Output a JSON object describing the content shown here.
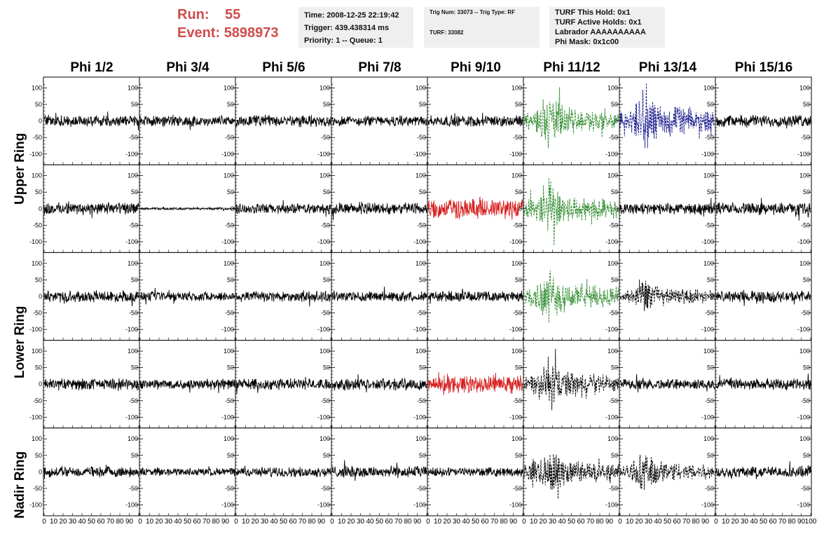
{
  "header": {
    "run_label": "Run:",
    "run_value": "55",
    "event_label": "Event:",
    "event_value": "5898973",
    "time": "Time: 2008-12-25 22:19:42",
    "trigger": "Trigger: 439.438314 ms",
    "priority": "Priority: 1 -- Queue: 1",
    "trig_num": "Trig Num: 33073 -- Trig Type: RF",
    "turf": "TURF: 33082",
    "turf_this_hold": "TURF This Hold: 0x1",
    "turf_active_holds": "TURF Active Holds: 0x1",
    "labrador": "Labrador AAAAAAAAAA",
    "phi_mask": "Phi Mask: 0x1c00"
  },
  "columns": [
    "Phi 1/2",
    "Phi 3/4",
    "Phi 5/6",
    "Phi 7/8",
    "Phi 9/10",
    "Phi 11/12",
    "Phi 13/14",
    "Phi 15/16"
  ],
  "rows": [
    "Upper Ring",
    "Lower Ring",
    "Nadir Ring"
  ],
  "colors": {
    "default": "#000000",
    "green": "#2e8b2e",
    "blue": "#1a1a8c",
    "red": "#d62020"
  },
  "chart_data": {
    "type": "line",
    "x_range": [
      0,
      100
    ],
    "y_range": [
      -120,
      120
    ],
    "y_ticks": [
      -100,
      -50,
      0,
      50,
      100
    ],
    "y_tick_labels": [
      "-100",
      "-50",
      "0",
      "50",
      "100"
    ],
    "x_ticks": [
      0,
      10,
      20,
      30,
      40,
      50,
      60,
      70,
      80,
      90,
      100
    ],
    "x_tick_labels": [
      "0",
      "10",
      "20",
      "30",
      "40",
      "50",
      "60",
      "70",
      "80",
      "90",
      "100"
    ],
    "panel_rows": 5,
    "panel_cols": 8,
    "panels": [
      [
        {
          "amp": 14,
          "color": "default",
          "style": "solid"
        },
        {
          "amp": 13,
          "color": "default",
          "style": "solid"
        },
        {
          "amp": 15,
          "color": "default",
          "style": "solid"
        },
        {
          "amp": 13,
          "color": "default",
          "style": "solid"
        },
        {
          "amp": 14,
          "color": "default",
          "style": "solid"
        },
        {
          "amp": 45,
          "color": "green",
          "style": "dashed",
          "pulse": true
        },
        {
          "amp": 50,
          "color": "blue",
          "style": "dashed",
          "pulse": true
        },
        {
          "amp": 15,
          "color": "default",
          "style": "solid"
        }
      ],
      [
        {
          "amp": 15,
          "color": "default",
          "style": "solid"
        },
        {
          "amp": 3,
          "color": "default",
          "style": "solid"
        },
        {
          "amp": 13,
          "color": "default",
          "style": "solid"
        },
        {
          "amp": 15,
          "color": "default",
          "style": "solid"
        },
        {
          "amp": 25,
          "color": "red",
          "style": "solid"
        },
        {
          "amp": 45,
          "color": "green",
          "style": "dashed",
          "pulse": true
        },
        {
          "amp": 14,
          "color": "default",
          "style": "solid"
        },
        {
          "amp": 15,
          "color": "default",
          "style": "solid"
        }
      ],
      [
        {
          "amp": 14,
          "color": "default",
          "style": "solid"
        },
        {
          "amp": 12,
          "color": "default",
          "style": "solid"
        },
        {
          "amp": 14,
          "color": "default",
          "style": "solid"
        },
        {
          "amp": 13,
          "color": "default",
          "style": "solid"
        },
        {
          "amp": 13,
          "color": "default",
          "style": "solid"
        },
        {
          "amp": 45,
          "color": "green",
          "style": "dashed",
          "pulse": true
        },
        {
          "amp": 30,
          "color": "default",
          "style": "dashed",
          "pulse": true
        },
        {
          "amp": 14,
          "color": "default",
          "style": "solid"
        }
      ],
      [
        {
          "amp": 14,
          "color": "default",
          "style": "solid"
        },
        {
          "amp": 13,
          "color": "default",
          "style": "solid"
        },
        {
          "amp": 14,
          "color": "default",
          "style": "solid"
        },
        {
          "amp": 15,
          "color": "default",
          "style": "solid"
        },
        {
          "amp": 22,
          "color": "red",
          "style": "solid"
        },
        {
          "amp": 40,
          "color": "default",
          "style": "dashed",
          "pulse": true
        },
        {
          "amp": 13,
          "color": "default",
          "style": "solid"
        },
        {
          "amp": 14,
          "color": "default",
          "style": "solid"
        }
      ],
      [
        {
          "amp": 13,
          "color": "default",
          "style": "solid"
        },
        {
          "amp": 10,
          "color": "default",
          "style": "solid"
        },
        {
          "amp": 12,
          "color": "default",
          "style": "solid"
        },
        {
          "amp": 15,
          "color": "default",
          "style": "solid"
        },
        {
          "amp": 11,
          "color": "default",
          "style": "solid"
        },
        {
          "amp": 40,
          "color": "default",
          "style": "dashed",
          "pulse": true
        },
        {
          "amp": 35,
          "color": "default",
          "style": "dashed",
          "pulse": true
        },
        {
          "amp": 14,
          "color": "default",
          "style": "solid"
        }
      ]
    ]
  }
}
